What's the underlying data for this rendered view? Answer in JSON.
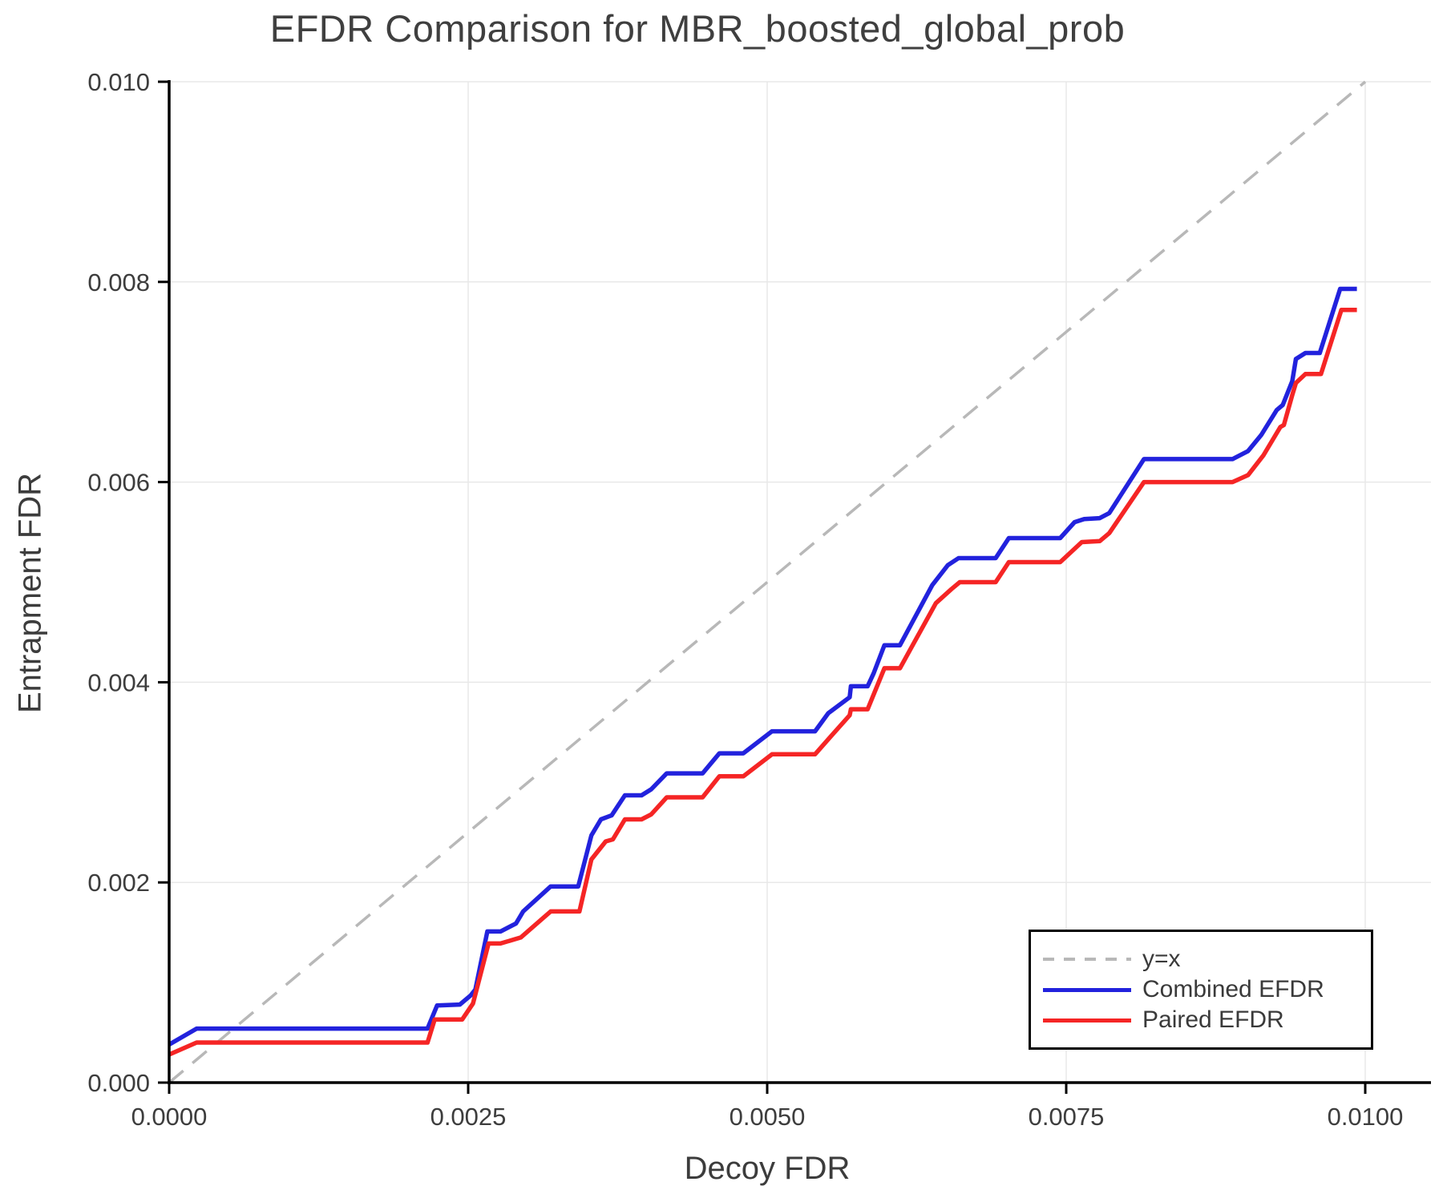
{
  "chart_data": {
    "type": "line",
    "title": "EFDR Comparison for MBR_boosted_global_prob",
    "xlabel": "Decoy FDR",
    "ylabel": "Entrapment FDR",
    "xlim": [
      0.0,
      0.01
    ],
    "ylim": [
      0.0,
      0.01
    ],
    "grid": true,
    "legend_position": "lower right",
    "x_ticks": {
      "values": [
        0.0,
        0.0025,
        0.005,
        0.0075,
        0.01
      ],
      "labels": [
        "0.0000",
        "0.0025",
        "0.0050",
        "0.0075",
        "0.0100"
      ]
    },
    "y_ticks": {
      "values": [
        0.0,
        0.002,
        0.004,
        0.006,
        0.008,
        0.01
      ],
      "labels": [
        "0.000",
        "0.002",
        "0.004",
        "0.006",
        "0.008",
        "0.010"
      ]
    },
    "colors": {
      "grid": "#e8e8e8",
      "axis": "#000000",
      "tick_text": "#3d3d3d"
    },
    "ref_line": {
      "label": "y=x",
      "color": "#b8b8b8",
      "style": "dashed",
      "from": [
        0.0,
        0.0
      ],
      "to": [
        0.01,
        0.01
      ]
    },
    "series": [
      {
        "name": "Combined EFDR",
        "color": "#2222dd",
        "x": [
          0.0,
          0.00023,
          0.00216,
          0.00224,
          0.00243,
          0.00252,
          0.00256,
          0.00266,
          0.00277,
          0.0029,
          0.00296,
          0.00319,
          0.00342,
          0.00353,
          0.00361,
          0.0037,
          0.00381,
          0.00395,
          0.00403,
          0.00416,
          0.00446,
          0.0046,
          0.0048,
          0.00504,
          0.0054,
          0.00551,
          0.00569,
          0.0057,
          0.00584,
          0.00589,
          0.00598,
          0.00611,
          0.00638,
          0.00651,
          0.0066,
          0.00691,
          0.00702,
          0.00745,
          0.00757,
          0.00765,
          0.00778,
          0.00786,
          0.00815,
          0.00889,
          0.00902,
          0.00913,
          0.00926,
          0.00931,
          0.00939,
          0.00942,
          0.0095,
          0.00962,
          0.00979,
          0.00993
        ],
        "y": [
          0.00038,
          0.00054,
          0.00054,
          0.00077,
          0.00078,
          0.00087,
          0.00093,
          0.00151,
          0.00151,
          0.00159,
          0.00171,
          0.00196,
          0.00196,
          0.00247,
          0.00263,
          0.00267,
          0.00287,
          0.00287,
          0.00293,
          0.00309,
          0.00309,
          0.00329,
          0.00329,
          0.00351,
          0.00351,
          0.00369,
          0.00385,
          0.00396,
          0.00396,
          0.00409,
          0.00437,
          0.00437,
          0.00497,
          0.00517,
          0.00524,
          0.00524,
          0.00544,
          0.00544,
          0.0056,
          0.00563,
          0.00564,
          0.00569,
          0.00623,
          0.00623,
          0.00631,
          0.00647,
          0.00672,
          0.00677,
          0.00701,
          0.00723,
          0.00729,
          0.00729,
          0.00793,
          0.00793
        ]
      },
      {
        "name": "Paired EFDR",
        "color": "#f52525",
        "x": [
          0.0,
          0.00023,
          0.00216,
          0.00222,
          0.00245,
          0.00254,
          0.00267,
          0.00277,
          0.00294,
          0.00319,
          0.00343,
          0.00353,
          0.00365,
          0.00371,
          0.00381,
          0.00395,
          0.00403,
          0.00416,
          0.00446,
          0.0046,
          0.0048,
          0.00504,
          0.0054,
          0.00554,
          0.00569,
          0.0057,
          0.00584,
          0.00598,
          0.00611,
          0.00641,
          0.00654,
          0.00661,
          0.00691,
          0.00702,
          0.00745,
          0.00763,
          0.00778,
          0.00786,
          0.00815,
          0.00889,
          0.00902,
          0.00915,
          0.00929,
          0.00932,
          0.00939,
          0.00942,
          0.0095,
          0.00963,
          0.0098,
          0.00993
        ],
        "y": [
          0.00028,
          0.0004,
          0.0004,
          0.00063,
          0.00063,
          0.00079,
          0.00139,
          0.00139,
          0.00145,
          0.00171,
          0.00171,
          0.00223,
          0.00241,
          0.00243,
          0.00263,
          0.00263,
          0.00268,
          0.00285,
          0.00285,
          0.00306,
          0.00306,
          0.00328,
          0.00328,
          0.00347,
          0.00367,
          0.00373,
          0.00373,
          0.00414,
          0.00414,
          0.00479,
          0.00493,
          0.005,
          0.005,
          0.0052,
          0.0052,
          0.0054,
          0.00541,
          0.00549,
          0.006,
          0.006,
          0.00607,
          0.00627,
          0.00655,
          0.00657,
          0.00687,
          0.00699,
          0.00708,
          0.00708,
          0.00772,
          0.00772
        ]
      }
    ]
  }
}
